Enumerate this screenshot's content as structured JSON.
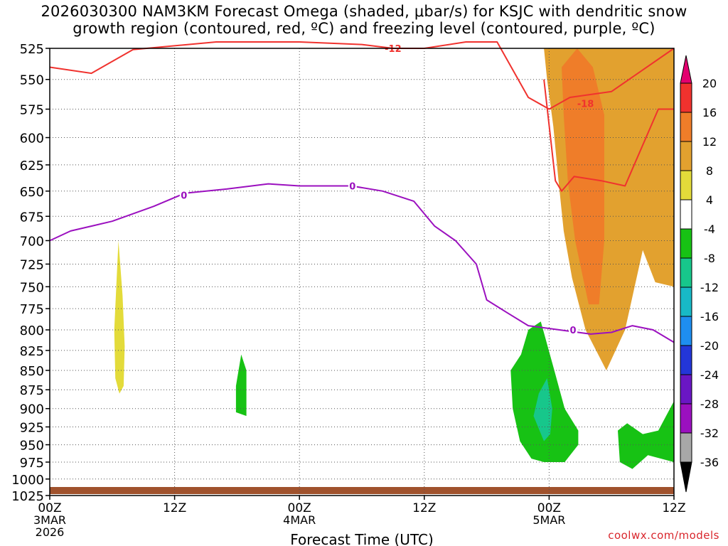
{
  "title": {
    "line1": "2026030300 NAM3KM Forecast Omega (shaded, μbar/s) for KSJC with dendritic snow",
    "line2": "growth region (contoured, red, ºC) and freezing level (contoured, purple, ºC)"
  },
  "credit": "coolwx.com/models",
  "chart_data": {
    "type": "heatmap",
    "title": "2026030300 NAM3KM Forecast Omega (shaded, μbar/s) for KSJC with dendritic snow growth region (contoured, red, ºC) and freezing level (contoured, purple, ºC)",
    "xlabel": "Forecast Time (UTC)",
    "ylabel": "",
    "x_unit": "forecast hour",
    "xlim": [
      0,
      60
    ],
    "x_ticks": [
      {
        "hour": 0,
        "label": "00Z",
        "sub1": "3MAR",
        "sub2": "2026"
      },
      {
        "hour": 12,
        "label": "12Z",
        "sub1": "",
        "sub2": ""
      },
      {
        "hour": 24,
        "label": "00Z",
        "sub1": "4MAR",
        "sub2": ""
      },
      {
        "hour": 36,
        "label": "12Z",
        "sub1": "",
        "sub2": ""
      },
      {
        "hour": 48,
        "label": "00Z",
        "sub1": "5MAR",
        "sub2": ""
      },
      {
        "hour": 60,
        "label": "12Z",
        "sub1": "",
        "sub2": ""
      }
    ],
    "ylim": [
      1025,
      525
    ],
    "y_scale": "log-pressure",
    "y_ticks": [
      "525",
      "550",
      "575",
      "600",
      "625",
      "650",
      "675",
      "700",
      "725",
      "750",
      "775",
      "800",
      "825",
      "850",
      "875",
      "900",
      "925",
      "950",
      "975",
      "1000",
      "1025"
    ],
    "colorbar": {
      "levels": [
        "20",
        "16",
        "12",
        "8",
        "4",
        "-4",
        "-8",
        "-12",
        "-16",
        "-20",
        "-24",
        "-28",
        "-32",
        "-36"
      ],
      "colors": [
        "#e3006f",
        "#f0322e",
        "#ef7d29",
        "#e2a12f",
        "#e3db3a",
        "#ffffff",
        "#17c214",
        "#17c78b",
        "#18b9c6",
        "#1e8ef0",
        "#2336d8",
        "#6a16c4",
        "#9b10bf",
        "#a8a8a8",
        "#000000"
      ]
    },
    "shaded_regions": [
      {
        "name": "rise-ascent",
        "color": "#17c214",
        "value_range": [
          -8,
          -4
        ],
        "points": [
          [
            18.9,
            850
          ],
          [
            18.9,
            910
          ],
          [
            17.9,
            905
          ],
          [
            17.9,
            870
          ],
          [
            18.4,
            830
          ]
        ]
      },
      {
        "name": "early-yellow",
        "color": "#e3db3a",
        "value_range": [
          4,
          8
        ],
        "points": [
          [
            6.7,
            880
          ],
          [
            6.3,
            860
          ],
          [
            6.2,
            800
          ],
          [
            6.6,
            700
          ],
          [
            7.0,
            760
          ],
          [
            7.2,
            820
          ],
          [
            7.1,
            870
          ]
        ]
      },
      {
        "name": "orange-core",
        "color": "#e2a12f",
        "value_range": [
          8,
          12
        ],
        "points": [
          [
            47.5,
            525
          ],
          [
            60,
            525
          ],
          [
            60,
            750
          ],
          [
            58.2,
            745
          ],
          [
            57.0,
            710
          ],
          [
            55.3,
            800
          ],
          [
            53.5,
            850
          ],
          [
            51.5,
            800
          ],
          [
            50.2,
            740
          ],
          [
            49.4,
            690
          ],
          [
            48.9,
            640
          ],
          [
            48.4,
            590
          ],
          [
            47.8,
            550
          ]
        ]
      },
      {
        "name": "max-orange",
        "color": "#ef7d29",
        "value_range": [
          12,
          16
        ],
        "points": [
          [
            49.2,
            540
          ],
          [
            50.7,
            525
          ],
          [
            52.2,
            540
          ],
          [
            53.3,
            580
          ],
          [
            53.3,
            700
          ],
          [
            52.8,
            770
          ],
          [
            51.8,
            770
          ],
          [
            50.5,
            700
          ],
          [
            49.8,
            640
          ],
          [
            49.4,
            580
          ]
        ]
      },
      {
        "name": "east-green",
        "color": "#17c214",
        "value_range": [
          -8,
          -4
        ],
        "points": [
          [
            54.8,
            975
          ],
          [
            54.6,
            930
          ],
          [
            55.5,
            920
          ],
          [
            57.0,
            935
          ],
          [
            58.5,
            930
          ],
          [
            60,
            890
          ],
          [
            60,
            975
          ],
          [
            57.5,
            965
          ],
          [
            56.0,
            985
          ]
        ]
      },
      {
        "name": "late-green",
        "color": "#17c214",
        "value_range": [
          -8,
          -4
        ],
        "points": [
          [
            46.3,
            970
          ],
          [
            45.2,
            945
          ],
          [
            44.5,
            900
          ],
          [
            44.3,
            850
          ],
          [
            45.3,
            830
          ],
          [
            46.0,
            800
          ],
          [
            47.2,
            790
          ],
          [
            48.5,
            850
          ],
          [
            49.5,
            900
          ],
          [
            50.8,
            930
          ],
          [
            50.8,
            950
          ],
          [
            49.5,
            975
          ],
          [
            47.5,
            975
          ]
        ]
      },
      {
        "name": "late-teal",
        "color": "#17c78b",
        "value_range": [
          -12,
          -8
        ],
        "points": [
          [
            47.5,
            945
          ],
          [
            46.5,
            910
          ],
          [
            47.0,
            880
          ],
          [
            47.8,
            860
          ],
          [
            48.3,
            900
          ],
          [
            48.1,
            935
          ]
        ]
      }
    ],
    "series": [
      {
        "name": "-12",
        "color": "#f0322e",
        "points": [
          [
            0,
            540
          ],
          [
            4,
            545
          ],
          [
            8,
            526
          ],
          [
            16,
            520
          ],
          [
            24,
            520
          ],
          [
            30,
            522
          ],
          [
            33,
            525
          ],
          [
            36,
            525
          ],
          [
            40,
            520
          ],
          [
            43,
            520
          ],
          [
            46,
            565
          ],
          [
            48,
            575
          ],
          [
            50,
            565
          ],
          [
            54,
            560
          ],
          [
            60,
            525
          ]
        ]
      },
      {
        "name": "-18",
        "color": "#f0322e",
        "points": [
          [
            47.5,
            550
          ],
          [
            48.6,
            640
          ],
          [
            49.2,
            650
          ],
          [
            50.4,
            636
          ],
          [
            53,
            640
          ],
          [
            55.3,
            645
          ],
          [
            58.5,
            575
          ],
          [
            60,
            575
          ]
        ]
      },
      {
        "name": "0",
        "color": "#9b10bf",
        "points": [
          [
            0,
            700
          ],
          [
            2,
            690
          ],
          [
            6,
            680
          ],
          [
            10,
            665
          ],
          [
            13,
            652
          ],
          [
            17,
            648
          ],
          [
            21,
            643
          ],
          [
            24,
            645
          ],
          [
            29,
            645
          ],
          [
            32,
            650
          ],
          [
            35,
            660
          ],
          [
            37,
            685
          ],
          [
            39,
            700
          ],
          [
            41,
            725
          ],
          [
            42,
            765
          ],
          [
            44,
            780
          ],
          [
            46,
            795
          ],
          [
            49,
            800
          ],
          [
            52,
            805
          ],
          [
            54,
            803
          ],
          [
            56,
            795
          ],
          [
            58,
            800
          ],
          [
            60,
            815
          ]
        ]
      }
    ],
    "contour_labels": [
      {
        "text": "-12",
        "x": 33.0,
        "y": 525
      },
      {
        "text": "-18",
        "x": 51.5,
        "y": 570
      },
      {
        "text": "0",
        "x": 12.9,
        "y": 654
      },
      {
        "text": "0",
        "x": 29.1,
        "y": 645
      },
      {
        "text": "0",
        "x": 50.3,
        "y": 800
      }
    ],
    "grid": true,
    "surface": {
      "name": "terrain",
      "color": "#a0522d"
    }
  }
}
